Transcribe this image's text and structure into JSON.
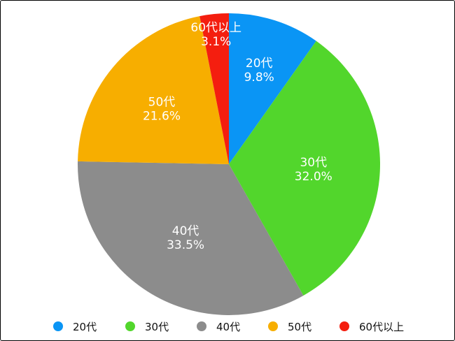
{
  "chart_data": {
    "type": "pie",
    "title": "",
    "legend_position": "bottom",
    "slices": [
      {
        "label": "20代",
        "value": 9.8,
        "value_label": "9.8%",
        "color": "#0A95F5"
      },
      {
        "label": "30代",
        "value": 32.0,
        "value_label": "32.0%",
        "color": "#52D62C"
      },
      {
        "label": "40代",
        "value": 33.5,
        "value_label": "33.5%",
        "color": "#8C8C8C"
      },
      {
        "label": "50代",
        "value": 21.6,
        "value_label": "21.6%",
        "color": "#F7AE00"
      },
      {
        "label": "60代以上",
        "value": 3.1,
        "value_label": "3.1%",
        "color": "#F41E0F"
      }
    ]
  }
}
